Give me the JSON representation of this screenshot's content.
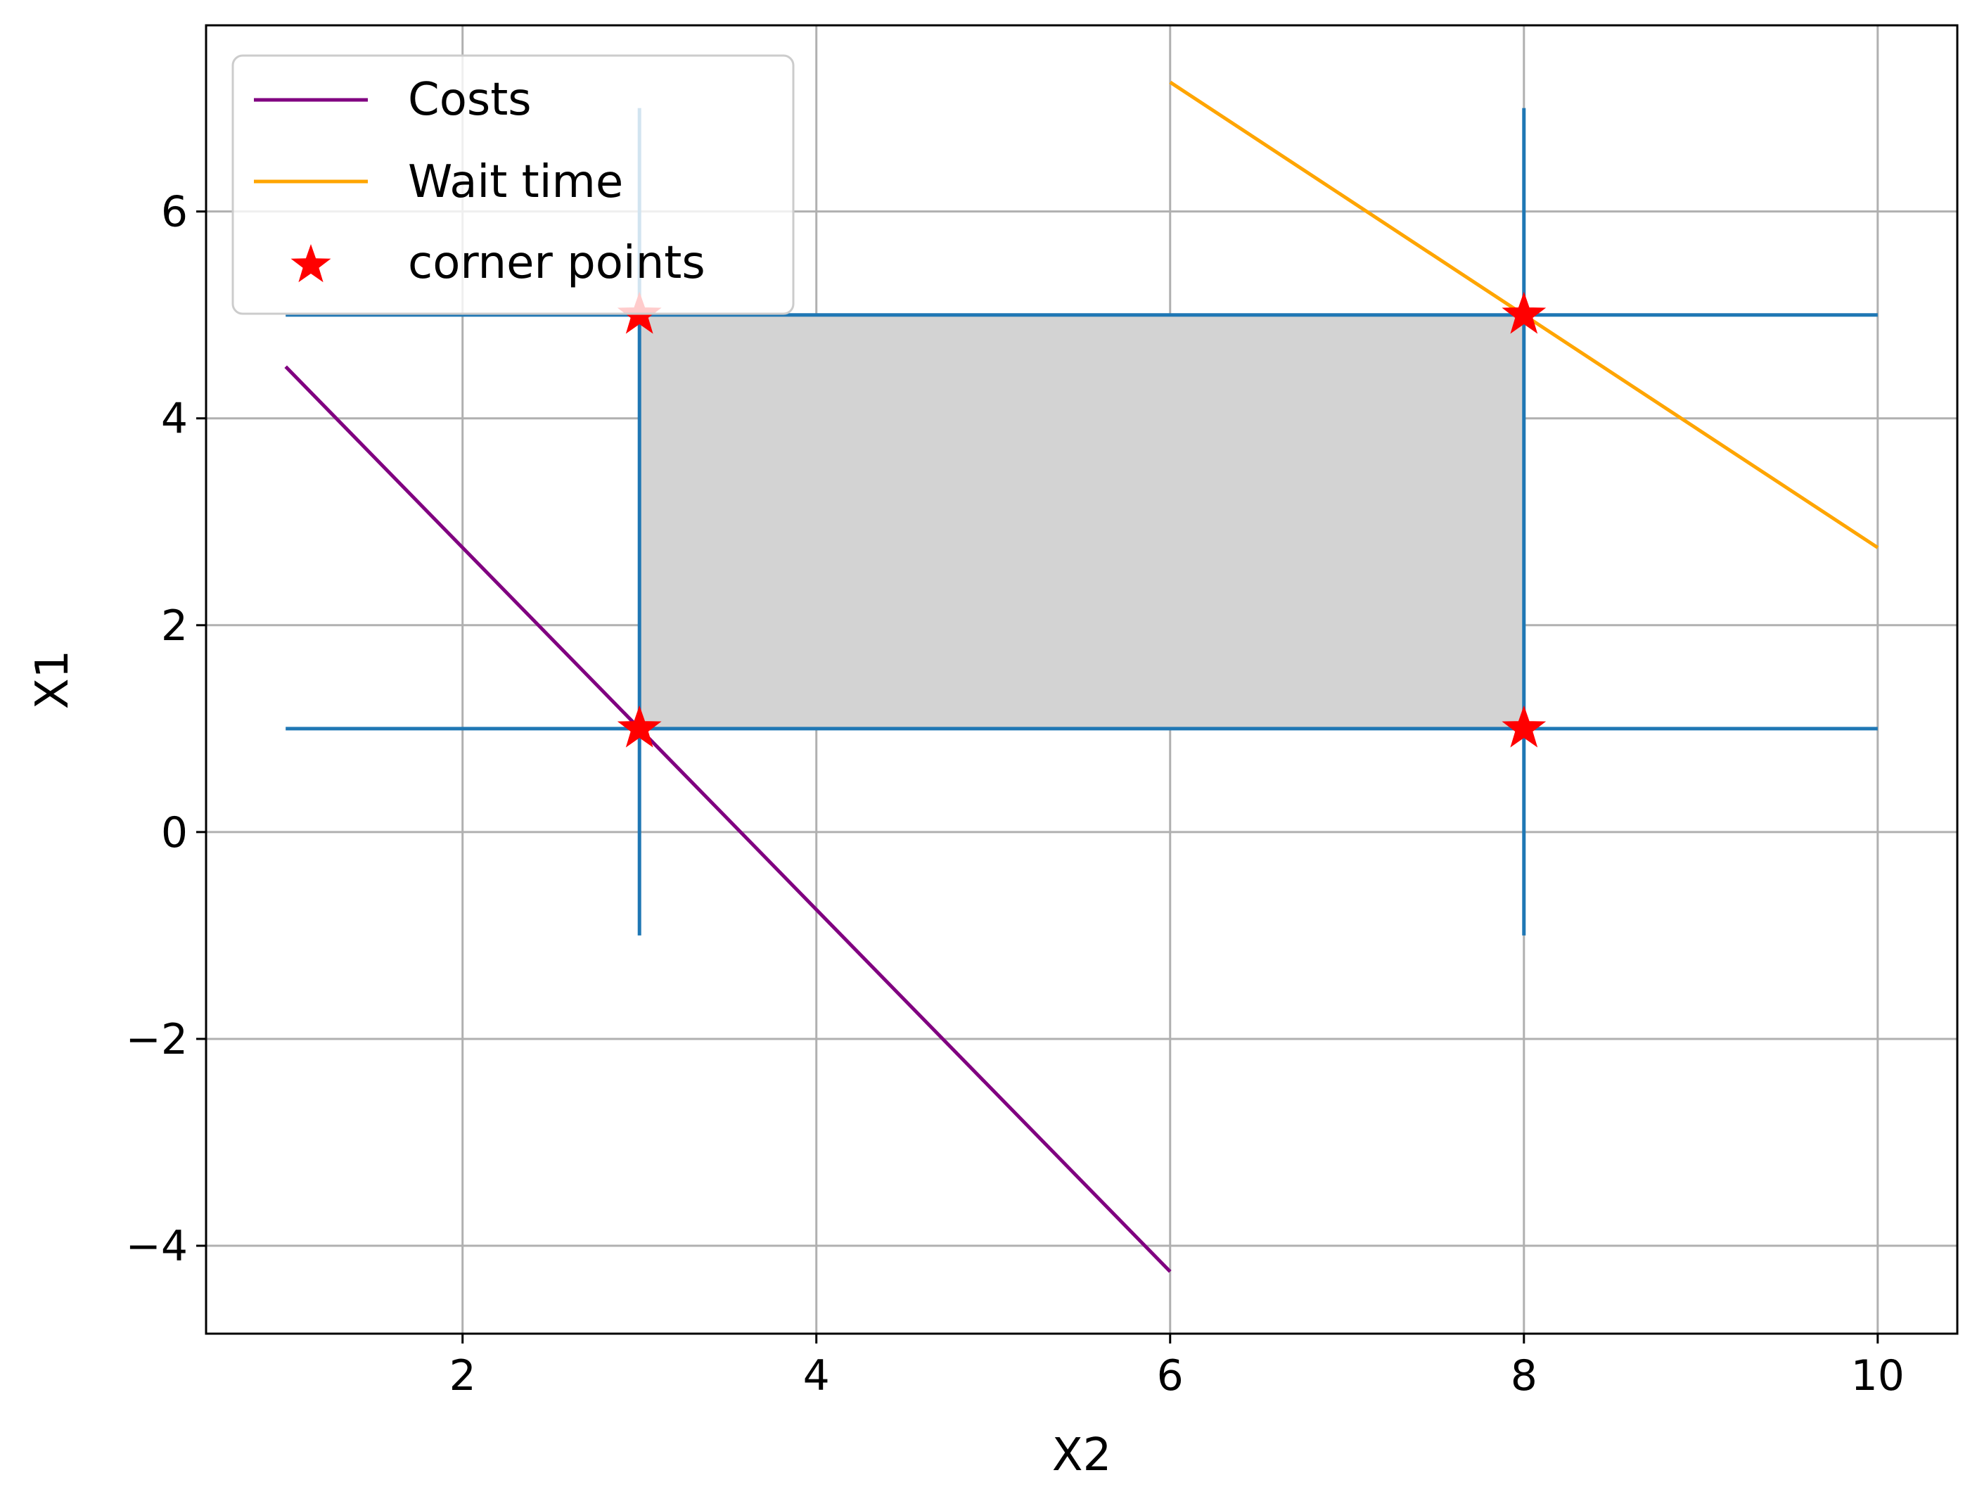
{
  "chart_data": {
    "type": "line",
    "title": "",
    "xlabel": "X2",
    "ylabel": "X1",
    "xlim": [
      0.55,
      10.45
    ],
    "ylim": [
      -4.85,
      7.8
    ],
    "xticks": [
      2,
      4,
      6,
      8,
      10
    ],
    "yticks": [
      -4,
      -2,
      0,
      2,
      4,
      6
    ],
    "xtick_labels": [
      "2",
      "4",
      "6",
      "8",
      "10"
    ],
    "ytick_labels": [
      "−4",
      "−2",
      "0",
      "2",
      "4",
      "6"
    ],
    "grid": true,
    "legend_position": "top-left",
    "feasible_region": {
      "x": [
        3,
        8
      ],
      "y": [
        1,
        5
      ],
      "color": "#d3d3d3"
    },
    "constraint_lines": {
      "color": "#1f77b4",
      "horizontal": [
        {
          "y": 5,
          "x": [
            1,
            10
          ]
        },
        {
          "y": 1,
          "x": [
            1,
            10
          ]
        }
      ],
      "vertical": [
        {
          "x": 3,
          "y": [
            -1,
            7
          ]
        },
        {
          "x": 8,
          "y": [
            -1,
            7
          ]
        }
      ]
    },
    "series": [
      {
        "name": "Costs",
        "type": "line",
        "color": "#800080",
        "x": [
          1,
          6
        ],
        "y": [
          4.5,
          -4.25
        ]
      },
      {
        "name": "Wait time",
        "type": "line",
        "color": "#ffa500",
        "x": [
          6,
          10
        ],
        "y": [
          7.25,
          2.75
        ]
      },
      {
        "name": "corner points",
        "type": "scatter",
        "marker": "star",
        "color": "#ff0000",
        "x": [
          3,
          3,
          8,
          8
        ],
        "y": [
          5,
          1,
          5,
          1
        ]
      }
    ]
  }
}
